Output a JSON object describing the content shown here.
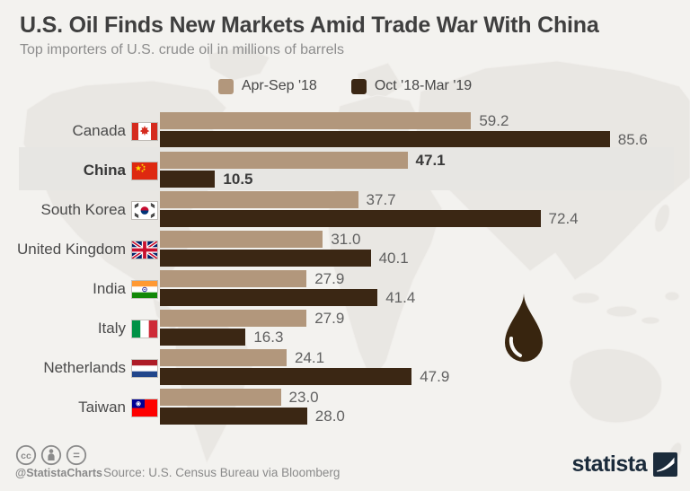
{
  "header": {
    "title": "U.S. Oil Finds New Markets Amid Trade War With China",
    "subtitle": "Top importers of U.S. crude oil in millions of barrels"
  },
  "legend": [
    {
      "label": "Apr-Sep '18",
      "color": "#b2977c"
    },
    {
      "label": "Oct '18-Mar '19",
      "color": "#3b2714"
    }
  ],
  "chart_data": {
    "type": "bar",
    "orientation": "horizontal",
    "title": "U.S. Oil Finds New Markets Amid Trade War With China",
    "subtitle": "Top importers of U.S. crude oil in millions of barrels",
    "unit": "millions of barrels",
    "categories": [
      "Canada",
      "China",
      "South Korea",
      "United Kingdom",
      "India",
      "Italy",
      "Netherlands",
      "Taiwan"
    ],
    "series": [
      {
        "name": "Apr-Sep '18",
        "color": "#b2977c",
        "values": [
          59.2,
          47.1,
          37.7,
          31.0,
          27.9,
          27.9,
          24.1,
          23.0
        ]
      },
      {
        "name": "Oct '18-Mar '19",
        "color": "#3b2714",
        "values": [
          85.6,
          10.5,
          72.4,
          40.1,
          41.4,
          16.3,
          47.9,
          28.0
        ]
      }
    ],
    "value_labels": true,
    "highlighted_category": "China",
    "xlim": [
      0,
      90
    ],
    "grid": false,
    "legend_position": "top-center",
    "flag_icons": [
      "flag-canada-icon",
      "flag-china-icon",
      "flag-south-korea-icon",
      "flag-united-kingdom-icon",
      "flag-india-icon",
      "flag-italy-icon",
      "flag-netherlands-icon",
      "flag-taiwan-icon"
    ]
  },
  "footer": {
    "handle": "@StatistaCharts",
    "source": "Source: U.S. Census Bureau via Bloomberg",
    "brand": "statista",
    "license_icons": [
      "cc-icon",
      "attribution-icon",
      "equal-icon"
    ]
  },
  "colors": {
    "background": "#f3f2ef",
    "highlight_band": "#e7e6e3",
    "title_text": "#3f3f3f",
    "subtitle_text": "#8d8d8d",
    "value_text": "#616161",
    "map_silhouette": "#e9e7e3",
    "brand_navy": "#1b2b3b",
    "oil_drop": "#38250f"
  }
}
